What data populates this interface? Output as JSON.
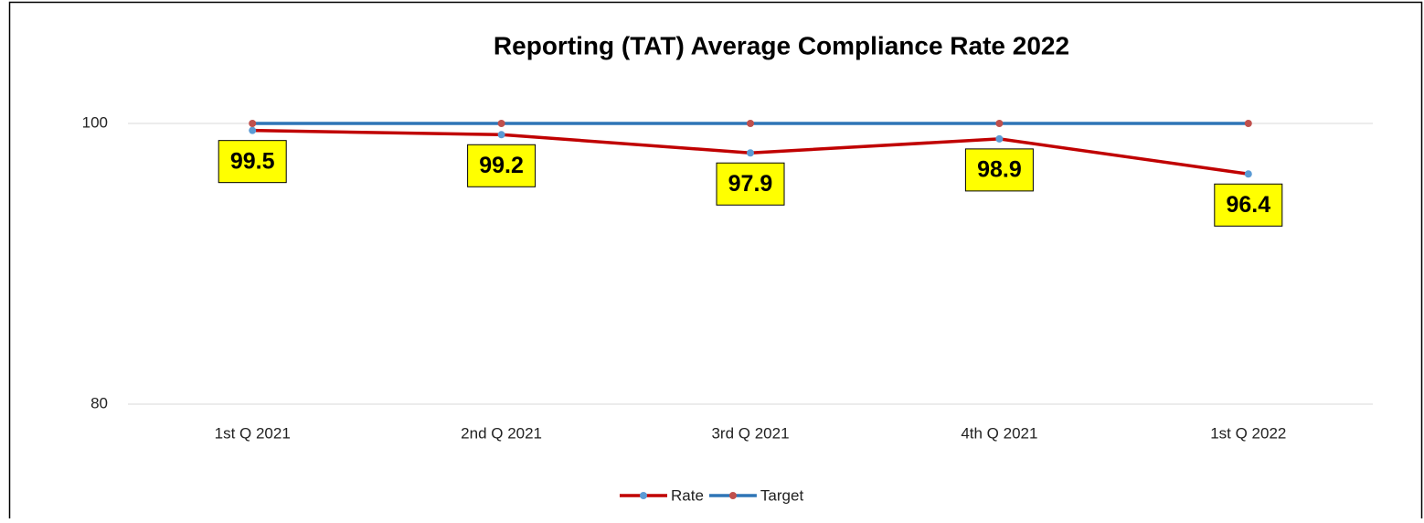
{
  "chart_data": {
    "type": "line",
    "title": "Reporting (TAT) Average Compliance Rate 2022",
    "categories": [
      "1st  Q 2021",
      "2nd Q 2021",
      "3rd Q 2021",
      "4th Q 2021",
      "1st  Q 2022"
    ],
    "series": [
      {
        "name": "Rate",
        "color": "#c00000",
        "marker_color": "#5b9bd5",
        "values": [
          99.5,
          99.2,
          97.9,
          98.9,
          96.4
        ],
        "data_labels": true
      },
      {
        "name": "Target",
        "color": "#2e75b6",
        "marker_color": "#c0504d",
        "values": [
          100,
          100,
          100,
          100,
          100
        ],
        "data_labels": false
      }
    ],
    "ylim": [
      80,
      100
    ],
    "yticks": [
      80,
      100
    ],
    "grid": true,
    "legend": "bottom"
  }
}
